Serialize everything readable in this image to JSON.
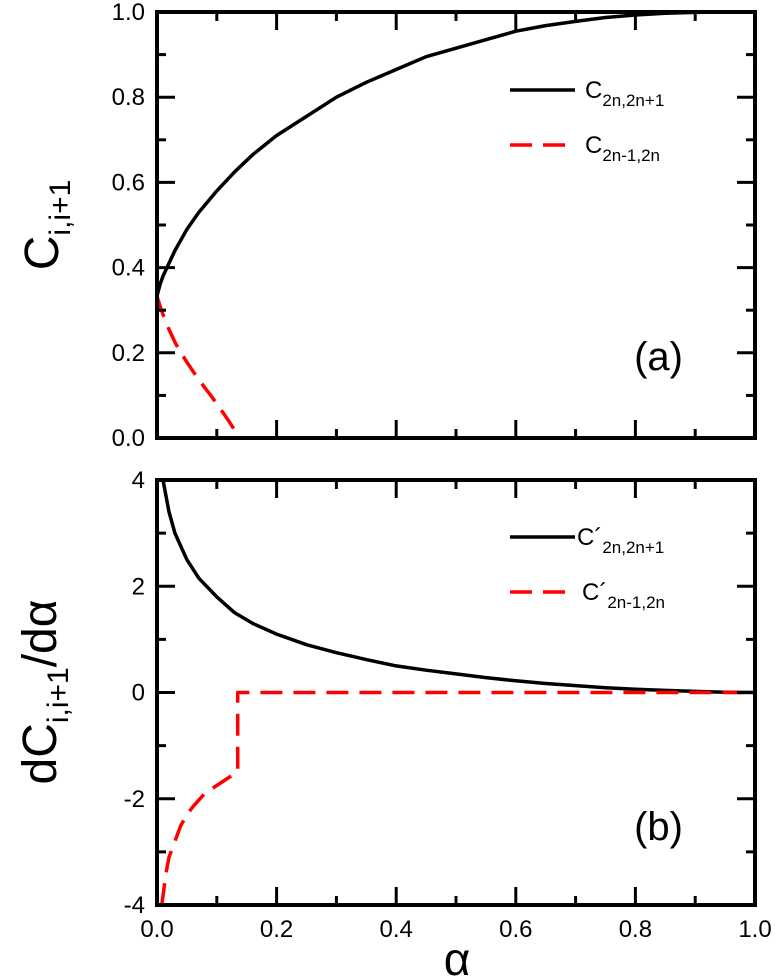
{
  "chart_data": [
    {
      "type": "line",
      "panel_label": "(a)",
      "ylabel": {
        "main": "C",
        "sub": "i,i+1"
      },
      "xlabel": "",
      "xlim": [
        0,
        1
      ],
      "ylim": [
        0,
        1
      ],
      "xticks": [
        0.0,
        0.2,
        0.4,
        0.6,
        0.8,
        1.0
      ],
      "yticks": [
        0.0,
        0.2,
        0.4,
        0.6,
        0.8,
        1.0
      ],
      "xtick_labels": [],
      "ytick_labels": [
        "0.0",
        "0.2",
        "0.4",
        "0.6",
        "0.8",
        "1.0"
      ],
      "legend_position": "top-right",
      "series": [
        {
          "name": "C_{2n,2n+1}",
          "legend_main": "C",
          "legend_sub": "2n,2n+1",
          "style": "solid",
          "color": "#000000",
          "x": [
            0.0,
            0.005,
            0.01,
            0.02,
            0.03,
            0.05,
            0.07,
            0.1,
            0.13,
            0.16,
            0.2,
            0.25,
            0.3,
            0.35,
            0.4,
            0.45,
            0.5,
            0.55,
            0.6,
            0.65,
            0.7,
            0.75,
            0.8,
            0.85,
            0.9,
            0.95,
            1.0
          ],
          "y": [
            0.333,
            0.36,
            0.38,
            0.41,
            0.44,
            0.49,
            0.53,
            0.58,
            0.625,
            0.665,
            0.71,
            0.755,
            0.8,
            0.835,
            0.865,
            0.895,
            0.915,
            0.935,
            0.955,
            0.968,
            0.978,
            0.987,
            0.993,
            0.997,
            0.999,
            1.0,
            1.0
          ]
        },
        {
          "name": "C_{2n-1,2n}",
          "legend_main": "C",
          "legend_sub": "2n-1,2n",
          "style": "dashed",
          "color": "#ff0000",
          "x": [
            0.0,
            0.005,
            0.01,
            0.02,
            0.03,
            0.04,
            0.05,
            0.06,
            0.07,
            0.08,
            0.09,
            0.1,
            0.11,
            0.12,
            0.13,
            0.135
          ],
          "y": [
            0.333,
            0.31,
            0.29,
            0.255,
            0.225,
            0.2,
            0.178,
            0.157,
            0.137,
            0.118,
            0.1,
            0.08,
            0.06,
            0.04,
            0.018,
            0.0
          ]
        }
      ]
    },
    {
      "type": "line",
      "panel_label": "(b)",
      "ylabel": {
        "prefix": "dC",
        "sub": "i,i+1",
        "suffix": "/dα"
      },
      "xlabel": "α",
      "xlim": [
        0,
        1
      ],
      "ylim": [
        -4,
        4
      ],
      "xticks": [
        0.0,
        0.2,
        0.4,
        0.6,
        0.8,
        1.0
      ],
      "yticks": [
        -4,
        -2,
        0,
        2,
        4
      ],
      "xtick_labels": [
        "0.0",
        "0.2",
        "0.4",
        "0.6",
        "0.8",
        "1.0"
      ],
      "ytick_labels": [
        "-4",
        "-2",
        "0",
        "2",
        "4"
      ],
      "legend_position": "top-right",
      "series": [
        {
          "name": "C'_{2n,2n+1}",
          "legend_main": "C´",
          "legend_sub": "2n,2n+1",
          "style": "solid",
          "color": "#000000",
          "x": [
            0.01,
            0.02,
            0.03,
            0.05,
            0.07,
            0.1,
            0.13,
            0.16,
            0.2,
            0.25,
            0.3,
            0.35,
            0.4,
            0.45,
            0.5,
            0.55,
            0.6,
            0.65,
            0.7,
            0.75,
            0.8,
            0.85,
            0.9,
            0.95,
            1.0
          ],
          "y": [
            4.0,
            3.4,
            3.0,
            2.5,
            2.15,
            1.8,
            1.5,
            1.3,
            1.1,
            0.9,
            0.75,
            0.62,
            0.5,
            0.42,
            0.35,
            0.28,
            0.22,
            0.17,
            0.13,
            0.09,
            0.06,
            0.04,
            0.02,
            0.005,
            0.0
          ]
        },
        {
          "name": "C'_{2n-1,2n}",
          "legend_main": "C´",
          "legend_sub": "2n-1,2n",
          "style": "dashed",
          "color": "#ff0000",
          "x": [
            0.008,
            0.015,
            0.02,
            0.03,
            0.04,
            0.05,
            0.06,
            0.08,
            0.1,
            0.12,
            0.135,
            0.135,
            0.2,
            0.4,
            0.6,
            0.8,
            1.0
          ],
          "y": [
            -4.0,
            -3.4,
            -3.1,
            -2.8,
            -2.5,
            -2.3,
            -2.15,
            -1.9,
            -1.75,
            -1.6,
            -1.5,
            0.0,
            0.0,
            0.0,
            0.0,
            0.0,
            0.0
          ]
        }
      ]
    }
  ]
}
